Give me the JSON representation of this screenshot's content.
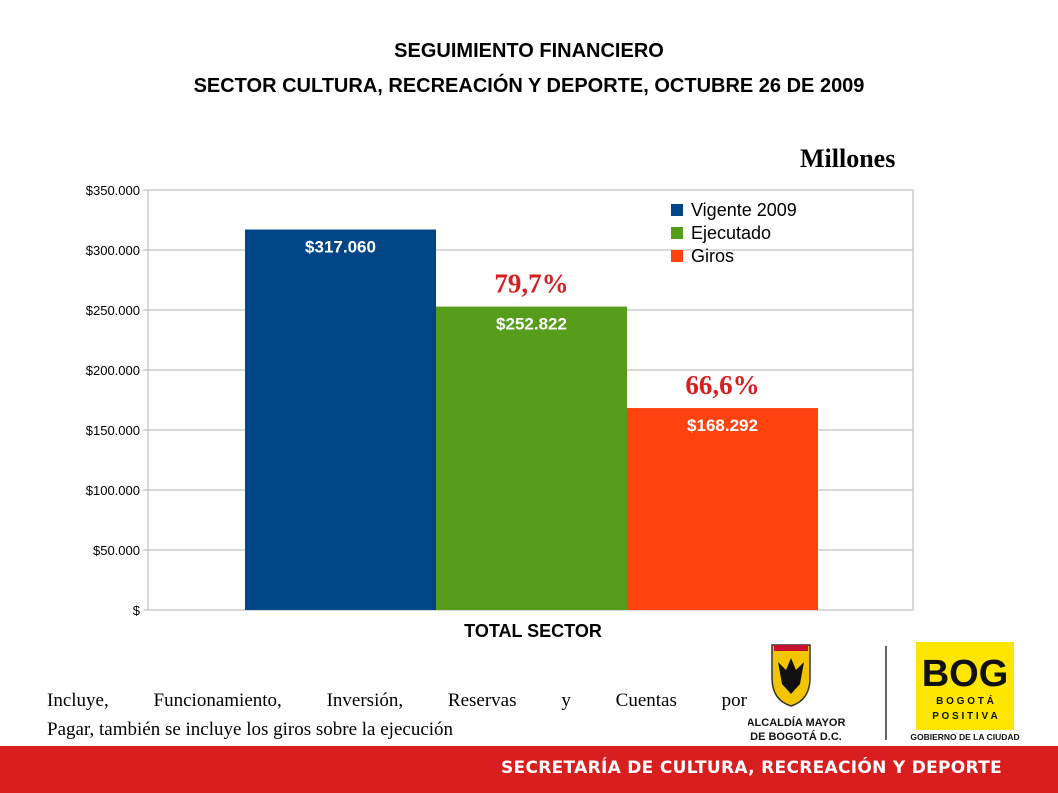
{
  "header": {
    "title_line1": "SEGUIMIENTO FINANCIERO",
    "title_line2": "SECTOR CULTURA, RECREACIÓN Y DEPORTE,  OCTUBRE 26 DE 2009",
    "unit": "Millones"
  },
  "chart_data": {
    "type": "bar",
    "categories": [
      "TOTAL SECTOR"
    ],
    "series": [
      {
        "name": "Vigente 2009",
        "values": [
          317060
        ],
        "label": "$317.060",
        "color": "#004586"
      },
      {
        "name": "Ejecutado",
        "values": [
          252822
        ],
        "label": "$252.822",
        "color": "#579d1c"
      },
      {
        "name": "Giros",
        "values": [
          168292
        ],
        "label": "$168.292",
        "color": "#ff420e"
      }
    ],
    "annotations": [
      {
        "text": "79,7%",
        "series": "Ejecutado",
        "color": "#d81e1e"
      },
      {
        "text": "66,6%",
        "series": "Giros",
        "color": "#d81e1e"
      }
    ],
    "yticks": [
      "$",
      "$50.000",
      "$100.000",
      "$150.000",
      "$200.000",
      "$250.000",
      "$300.000",
      "$350.000"
    ],
    "ylim": [
      0,
      350000
    ],
    "xlabel": "TOTAL SECTOR",
    "ylabel": "",
    "grid": true,
    "legend_position": "top-right"
  },
  "note": {
    "line1_words": [
      "Incluye,",
      "Funcionamiento,",
      "Inversión,",
      "Reservas",
      "y",
      "Cuentas",
      "por"
    ],
    "line2": "Pagar, también se incluye los giros sobre la ejecución"
  },
  "logos": {
    "alcaldia_line1": "ALCALDÍA MAYOR",
    "alcaldia_line2": "DE BOGOTÁ D.C.",
    "bog_text": "BOG",
    "bogota_letters": "B O G O T Á",
    "positiva_letters": "P O S I T I V A",
    "gobierno": "GOBIERNO DE LA CIUDAD"
  },
  "footer": {
    "text": "SECRETARÍA DE CULTURA, RECREACIÓN Y DEPORTE"
  },
  "colors": {
    "footer_bg": "#d81e1e",
    "logo_yellow": "#ffe600"
  }
}
